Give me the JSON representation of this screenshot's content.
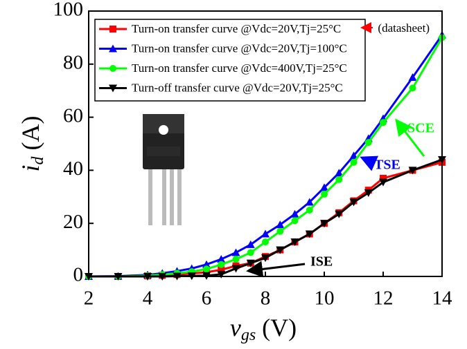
{
  "chart_data": {
    "type": "line",
    "xlabel": {
      "main": "v",
      "sub": "gs",
      "unit": " (V)"
    },
    "ylabel": {
      "main": "i",
      "sub": "d",
      "unit": " (A)"
    },
    "x": [
      2,
      3,
      4,
      4.5,
      5,
      5.5,
      6,
      6.5,
      7,
      7.5,
      8,
      8.5,
      9,
      9.5,
      10,
      10.5,
      11,
      11.5,
      12,
      13,
      14
    ],
    "series": [
      {
        "name": "Turn-on transfer curve @Vdc=20V,Tj=25°C",
        "color": "#ff0000",
        "marker": "square",
        "values": [
          0,
          0,
          0.2,
          0.4,
          0.7,
          1.1,
          1.6,
          2.5,
          4,
          5,
          7.5,
          10,
          13,
          16,
          20,
          24,
          28.5,
          32.5,
          37,
          40,
          43
        ]
      },
      {
        "name": "Turn-on transfer curve @Vdc=20V,Tj=100°C",
        "color": "#0000ff",
        "marker": "triangle-up",
        "values": [
          0,
          0.1,
          0.6,
          1.2,
          2,
          3,
          4.5,
          6.5,
          9,
          12,
          16,
          19.5,
          23.5,
          28,
          33.5,
          39,
          45.5,
          52,
          59.5,
          75,
          91
        ]
      },
      {
        "name": "Turn-on transfer curve @Vdc=400V,Tj=25°C",
        "color": "#00ff00",
        "marker": "circle",
        "values": [
          0,
          0,
          0.3,
          0.7,
          1.2,
          1.8,
          2.8,
          4.5,
          6.5,
          9,
          13,
          17,
          21,
          25,
          31,
          36.5,
          43,
          50.5,
          58,
          71,
          90
        ]
      },
      {
        "name": "Turn-off transfer curve @Vdc=20V,Tj=25°C",
        "color": "#000000",
        "marker": "triangle-down",
        "values": [
          0,
          0,
          0,
          0,
          0.1,
          0.2,
          0.3,
          0.8,
          3,
          5,
          7,
          10,
          13,
          16,
          20,
          23.5,
          28,
          31.5,
          35.5,
          40,
          44
        ]
      }
    ],
    "xlim": [
      2,
      14
    ],
    "xticks": [
      2,
      4,
      6,
      8,
      10,
      12,
      14
    ],
    "ylim": [
      0,
      100
    ],
    "yticks": [
      0,
      20,
      40,
      60,
      80,
      100
    ],
    "annotations": {
      "datasheet": "(datasheet)",
      "sce": "SCE",
      "tse": "TSE",
      "ise": "ISE"
    }
  }
}
